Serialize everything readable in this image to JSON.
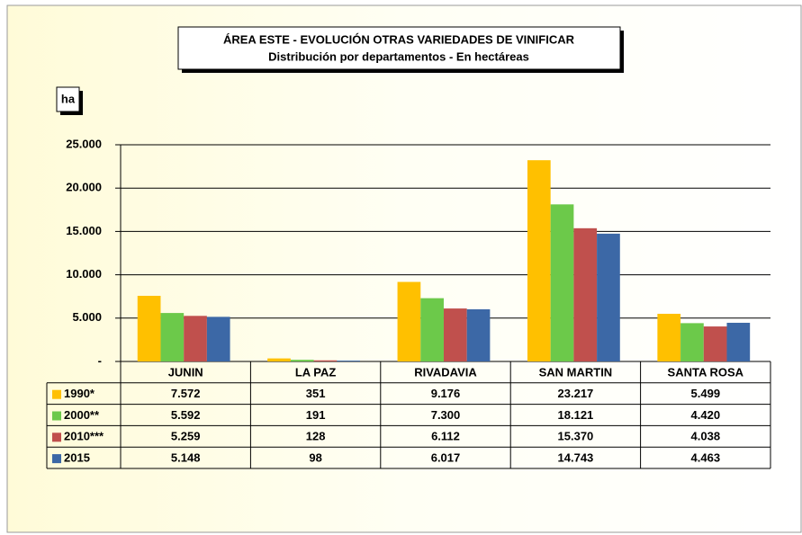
{
  "chart_data": {
    "type": "bar",
    "title": "ÁREA ESTE -  EVOLUCIÓN OTRAS VARIEDADES DE VINIFICAR",
    "subtitle": "Distribución por departamentos - En hectáreas",
    "y_label": "ha",
    "categories": [
      "JUNIN",
      "LA PAZ",
      "RIVADAVIA",
      "SAN MARTIN",
      "SANTA ROSA"
    ],
    "series": [
      {
        "name": "1990*",
        "color": "#FFC000",
        "values": [
          7572,
          351,
          9176,
          23217,
          5499
        ],
        "value_labels": [
          "7.572",
          "351",
          "9.176",
          "23.217",
          "5.499"
        ]
      },
      {
        "name": "2000**",
        "color": "#6CC94A",
        "values": [
          5592,
          191,
          7300,
          18121,
          4420
        ],
        "value_labels": [
          "5.592",
          "191",
          "7.300",
          "18.121",
          "4.420"
        ]
      },
      {
        "name": "2010***",
        "color": "#C0504D",
        "values": [
          5259,
          128,
          6112,
          15370,
          4038
        ],
        "value_labels": [
          "5.259",
          "128",
          "6.112",
          "15.370",
          "4.038"
        ]
      },
      {
        "name": "2015",
        "color": "#3C68A6",
        "values": [
          5148,
          98,
          6017,
          14743,
          4463
        ],
        "value_labels": [
          "5.148",
          "98",
          "6.017",
          "14.743",
          "4.463"
        ]
      }
    ],
    "ylim": [
      0,
      25000
    ],
    "yticks": [
      {
        "value": 0,
        "label": "-"
      },
      {
        "value": 5000,
        "label": "5.000"
      },
      {
        "value": 10000,
        "label": "10.000"
      },
      {
        "value": 15000,
        "label": "15.000"
      },
      {
        "value": 20000,
        "label": "20.000"
      },
      {
        "value": 25000,
        "label": "25.000"
      }
    ],
    "grid": true
  }
}
